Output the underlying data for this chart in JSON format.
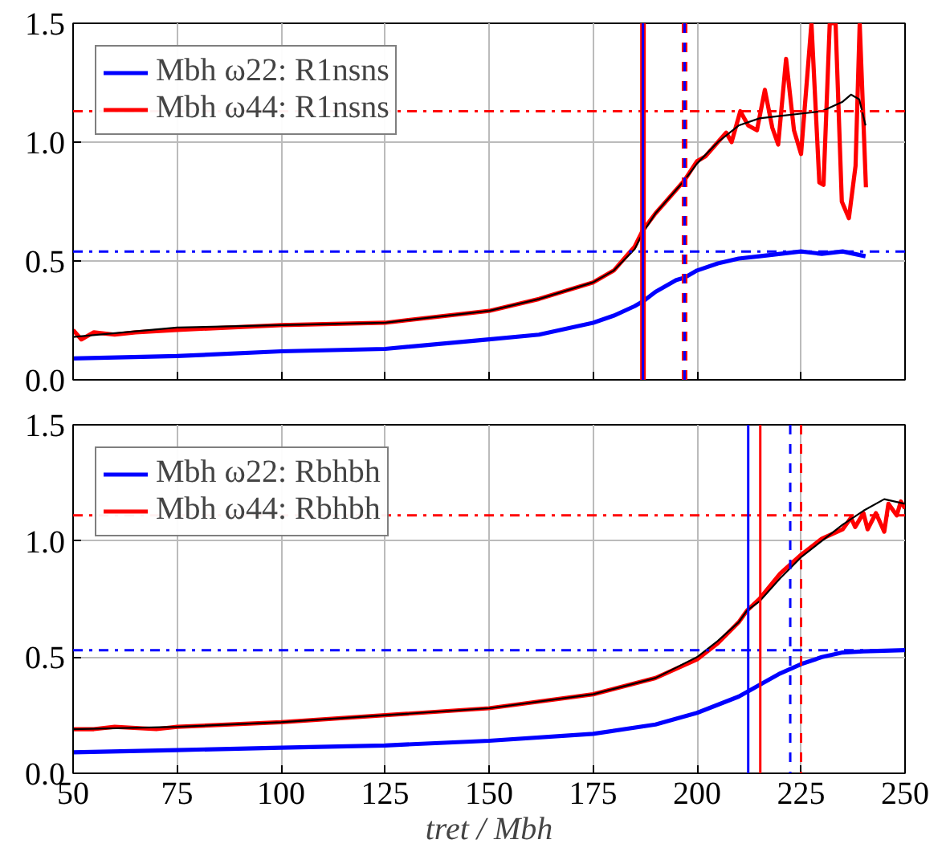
{
  "chart_data": [
    {
      "type": "line",
      "xlim": [
        50,
        250
      ],
      "ylim": [
        0,
        1.5
      ],
      "xticks": [
        50,
        75,
        100,
        125,
        150,
        175,
        200,
        225,
        250
      ],
      "yticks": [
        {
          "value": 0,
          "label": "0.0"
        },
        {
          "value": 0.5,
          "label": "0.5"
        },
        {
          "value": 1.0,
          "label": "1.0"
        },
        {
          "value": 1.5,
          "label": "1.5"
        }
      ],
      "tick_labels": "y",
      "grid": true,
      "legend": "top left",
      "line_style": "solid",
      "series": [
        {
          "name": "Mbh ω22: R1nsns",
          "color": "#0000ff",
          "x": [
            50,
            75,
            100,
            125,
            150,
            162,
            175,
            180,
            185,
            187,
            190,
            195,
            197,
            200,
            205,
            210,
            215,
            220,
            225,
            230,
            235,
            240.5
          ],
          "values": [
            0.09,
            0.1,
            0.12,
            0.13,
            0.17,
            0.19,
            0.24,
            0.27,
            0.31,
            0.33,
            0.37,
            0.42,
            0.43,
            0.46,
            0.49,
            0.51,
            0.52,
            0.53,
            0.54,
            0.53,
            0.54,
            0.52
          ]
        },
        {
          "name": "Mbh ω44: R1nsns",
          "color": "#ff0000",
          "x": [
            50,
            52,
            55,
            60,
            65,
            75,
            100,
            125,
            150,
            162,
            175,
            180,
            183,
            185,
            187,
            190,
            192,
            195,
            197,
            200,
            202,
            205,
            207,
            208.3,
            210.4,
            212.3,
            214.4,
            216.3,
            218.1,
            219.5,
            221.4,
            223.3,
            225,
            227.5,
            229.4,
            230.4,
            231.9,
            233.3,
            234.8,
            236.5,
            238.1,
            239.1,
            240.6
          ],
          "values": [
            0.21,
            0.17,
            0.2,
            0.19,
            0.2,
            0.21,
            0.23,
            0.24,
            0.29,
            0.34,
            0.41,
            0.46,
            0.52,
            0.56,
            0.63,
            0.7,
            0.74,
            0.8,
            0.84,
            0.92,
            0.94,
            1.0,
            1.04,
            1.0,
            1.13,
            1.07,
            1.05,
            1.22,
            1.06,
            0.99,
            1.35,
            1.05,
            0.95,
            1.5,
            0.83,
            0.82,
            1.5,
            1.5,
            0.75,
            0.68,
            0.9,
            1.5,
            0.81
          ]
        },
        {
          "color": "#000000",
          "x": [
            50,
            75,
            100,
            125,
            150,
            162,
            175,
            180,
            185,
            187,
            190,
            195,
            197,
            200,
            205,
            210,
            215,
            220,
            225,
            230,
            235,
            237,
            239,
            240.5
          ],
          "values": [
            0.18,
            0.22,
            0.23,
            0.24,
            0.29,
            0.34,
            0.41,
            0.46,
            0.55,
            0.62,
            0.7,
            0.8,
            0.84,
            0.91,
            1.0,
            1.07,
            1.1,
            1.11,
            1.12,
            1.13,
            1.17,
            1.2,
            1.18,
            1.07
          ]
        }
      ],
      "ref_lines": [
        {
          "axis": "y",
          "value": 1.13,
          "color": "#ff0000",
          "line_style": "dashdot"
        },
        {
          "axis": "y",
          "value": 0.54,
          "color": "#0000ff",
          "line_style": "dashdot"
        },
        {
          "axis": "x",
          "value": 187,
          "color": "#ff0000",
          "line_style": "solid"
        },
        {
          "axis": "x",
          "value": 187,
          "color": "#0000ff",
          "line_style": "solid"
        },
        {
          "axis": "x",
          "value": 197,
          "color": "#ff0000",
          "line_style": "dashed"
        },
        {
          "axis": "x",
          "value": 197,
          "color": "#0000ff",
          "line_style": "dashed"
        }
      ]
    },
    {
      "type": "line",
      "xlabel": "tret / Mbh",
      "xlim": [
        50,
        250
      ],
      "ylim": [
        0,
        1.5
      ],
      "xticks": [
        50,
        75,
        100,
        125,
        150,
        175,
        200,
        225,
        250
      ],
      "yticks": [
        {
          "value": 0,
          "label": "0.0"
        },
        {
          "value": 0.5,
          "label": "0.5"
        },
        {
          "value": 1.0,
          "label": "1.0"
        },
        {
          "value": 1.5,
          "label": "1.5"
        }
      ],
      "grid": true,
      "legend": "top left",
      "line_style": "solid",
      "series": [
        {
          "name": "Mbh ω22: Rbhbh",
          "color": "#0000ff",
          "x": [
            50,
            75,
            100,
            125,
            150,
            175,
            190,
            200,
            210,
            212,
            215,
            220,
            225,
            230,
            235,
            240,
            250
          ],
          "values": [
            0.09,
            0.1,
            0.11,
            0.12,
            0.14,
            0.17,
            0.21,
            0.26,
            0.33,
            0.35,
            0.38,
            0.43,
            0.47,
            0.5,
            0.52,
            0.525,
            0.53
          ]
        },
        {
          "name": "Mbh ω44: Rbhbh",
          "color": "#ff0000",
          "x": [
            50,
            55,
            60,
            70,
            75,
            100,
            125,
            150,
            175,
            190,
            200,
            205,
            210,
            212,
            215,
            220,
            225,
            230,
            235,
            237,
            238,
            240,
            241,
            243,
            245,
            246,
            248,
            249,
            250
          ],
          "values": [
            0.19,
            0.19,
            0.2,
            0.19,
            0.2,
            0.22,
            0.25,
            0.28,
            0.34,
            0.41,
            0.49,
            0.56,
            0.65,
            0.7,
            0.75,
            0.86,
            0.94,
            1.01,
            1.05,
            1.1,
            1.06,
            1.12,
            1.05,
            1.12,
            1.04,
            1.16,
            1.11,
            1.17,
            1.14
          ]
        },
        {
          "color": "#000000",
          "x": [
            50,
            75,
            100,
            125,
            150,
            175,
            190,
            200,
            205,
            210,
            212,
            215,
            220,
            225,
            230,
            235,
            240,
            245,
            250
          ],
          "values": [
            0.19,
            0.2,
            0.22,
            0.25,
            0.28,
            0.34,
            0.41,
            0.5,
            0.57,
            0.65,
            0.7,
            0.74,
            0.84,
            0.93,
            1.0,
            1.07,
            1.13,
            1.18,
            1.16
          ]
        }
      ],
      "ref_lines": [
        {
          "axis": "y",
          "value": 1.11,
          "color": "#ff0000",
          "line_style": "dashdot"
        },
        {
          "axis": "y",
          "value": 0.53,
          "color": "#0000ff",
          "line_style": "dashdot"
        },
        {
          "axis": "x",
          "value": 212.3,
          "color": "#0000ff",
          "line_style": "solid"
        },
        {
          "axis": "x",
          "value": 215.2,
          "color": "#ff0000",
          "line_style": "solid"
        },
        {
          "axis": "x",
          "value": 222.4,
          "color": "#0000ff",
          "line_style": "dashed"
        },
        {
          "axis": "x",
          "value": 225,
          "color": "#ff0000",
          "line_style": "dashed"
        }
      ]
    }
  ]
}
